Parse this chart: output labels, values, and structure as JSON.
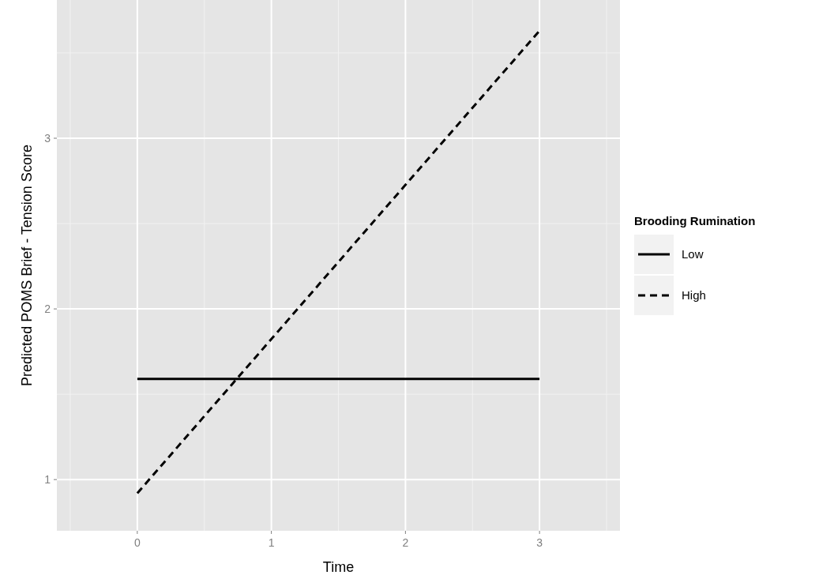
{
  "chart_data": {
    "type": "line",
    "xlabel": "Time",
    "ylabel": "Predicted POMS Brief - Tension Score",
    "legend_title": "Brooding Rumination",
    "x": [
      0,
      3
    ],
    "series": [
      {
        "name": "Low",
        "color": "#000000",
        "values": [
          1.59,
          1.59
        ],
        "line_style": "solid"
      },
      {
        "name": "High",
        "color": "#000000",
        "values": [
          0.92,
          3.63
        ],
        "line_style": "dashed"
      }
    ],
    "xlim": [
      -0.6,
      3.6
    ],
    "xticks": [
      0,
      1,
      2,
      3
    ],
    "ylim": [
      0.7,
      3.81
    ],
    "yticks": [
      1,
      2,
      3
    ],
    "grid": true,
    "legend": "right",
    "marker": "none"
  }
}
